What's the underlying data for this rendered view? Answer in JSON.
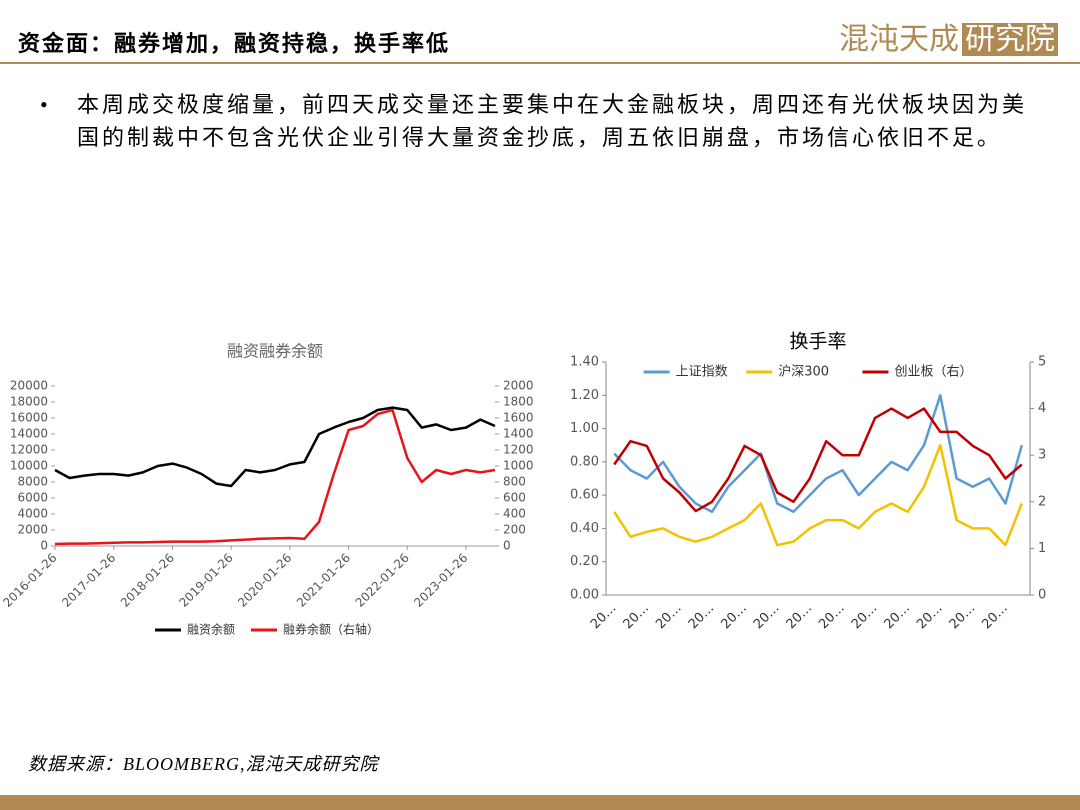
{
  "header": {
    "title": "资金面：融券增加，融资持稳，换手率低",
    "logo_main": "混沌天成",
    "logo_box": "研究院"
  },
  "bullet": "本周成交极度缩量，前四天成交量还主要集中在大金融板块，周四还有光伏板块因为美国的制裁中不包含光伏企业引得大量资金抄底，周五依旧崩盘，市场信心依旧不足。",
  "source": "数据来源：BLOOMBERG,混沌天成研究院",
  "chart_data": [
    {
      "type": "line",
      "title": "融资融券余额",
      "x": [
        "2016-01-26",
        "2016-04-26",
        "2016-07-26",
        "2016-10-26",
        "2017-01-26",
        "2017-04-26",
        "2017-07-26",
        "2017-10-26",
        "2018-01-26",
        "2018-04-26",
        "2018-07-26",
        "2018-10-26",
        "2019-01-26",
        "2019-04-26",
        "2019-07-26",
        "2019-10-26",
        "2020-01-26",
        "2020-04-26",
        "2020-07-26",
        "2020-10-26",
        "2021-01-26",
        "2021-04-26",
        "2021-07-26",
        "2021-10-26",
        "2022-01-26",
        "2022-04-26",
        "2022-07-26",
        "2022-10-26",
        "2023-01-26",
        "2023-04-26",
        "2023-07-26"
      ],
      "xticks": [
        "2016-01-26",
        "2017-01-26",
        "2018-01-26",
        "2019-01-26",
        "2020-01-26",
        "2021-01-26",
        "2022-01-26",
        "2023-01-26"
      ],
      "ylim": [
        0,
        20000
      ],
      "yticks": [
        0,
        2000,
        4000,
        6000,
        8000,
        10000,
        12000,
        14000,
        16000,
        18000,
        20000
      ],
      "y2lim": [
        0,
        2000
      ],
      "y2ticks": [
        0,
        200,
        400,
        600,
        800,
        1000,
        1200,
        1400,
        1600,
        1800,
        2000
      ],
      "legend": "bottom",
      "series": [
        {
          "name": "融资余额",
          "color": "#000000",
          "values": [
            9500,
            8500,
            8800,
            9000,
            9000,
            8800,
            9200,
            10000,
            10300,
            9800,
            9000,
            7800,
            7500,
            9500,
            9200,
            9500,
            10200,
            10500,
            14000,
            14800,
            15500,
            16000,
            17000,
            17300,
            17000,
            14800,
            15200,
            14500,
            14800,
            15800,
            15000
          ]
        },
        {
          "name": "融券余额（右轴）",
          "color": "#e8141b",
          "axis": "y2",
          "values": [
            25,
            30,
            30,
            35,
            40,
            45,
            45,
            50,
            55,
            55,
            55,
            60,
            70,
            80,
            90,
            95,
            100,
            90,
            300,
            900,
            1450,
            1500,
            1650,
            1700,
            1100,
            800,
            950,
            900,
            950,
            920,
            950
          ]
        }
      ]
    },
    {
      "type": "line",
      "title": "换手率",
      "categories": [
        "20…",
        null,
        "20…",
        null,
        "20…",
        null,
        "20…",
        null,
        "20…",
        null,
        "20…",
        null,
        "20…",
        null,
        "20…",
        null,
        "20…",
        null,
        "20…",
        null,
        "20…",
        null,
        "20…",
        null,
        "20…",
        null
      ],
      "ylim": [
        0,
        1.4
      ],
      "yticks": [
        {
          "value": 0,
          "label": "0.00"
        },
        {
          "value": 0.2,
          "label": "0.20"
        },
        {
          "value": 0.4,
          "label": "0.40"
        },
        {
          "value": 0.6,
          "label": "0.60"
        },
        {
          "value": 0.8,
          "label": "0.80"
        },
        {
          "value": 1,
          "label": "1.00"
        },
        {
          "value": 1.2,
          "label": "1.20"
        },
        {
          "value": 1.4,
          "label": "1.40"
        }
      ],
      "y2lim": [
        0,
        5
      ],
      "y2ticks": [
        0,
        1,
        2,
        3,
        4,
        5
      ],
      "legend": "top",
      "series": [
        {
          "name": "上证指数",
          "color": "#5b9bd5",
          "values": [
            0.85,
            0.75,
            0.7,
            0.8,
            0.65,
            0.55,
            0.5,
            0.65,
            0.75,
            0.85,
            0.55,
            0.5,
            0.6,
            0.7,
            0.75,
            0.6,
            0.7,
            0.8,
            0.75,
            0.9,
            1.2,
            0.7,
            0.65,
            0.7,
            0.55,
            0.9
          ]
        },
        {
          "name": "沪深300",
          "color": "#f2c200",
          "values": [
            0.5,
            0.35,
            0.38,
            0.4,
            0.35,
            0.32,
            0.35,
            0.4,
            0.45,
            0.55,
            0.3,
            0.32,
            0.4,
            0.45,
            0.45,
            0.4,
            0.5,
            0.55,
            0.5,
            0.65,
            0.9,
            0.45,
            0.4,
            0.4,
            0.3,
            0.55
          ]
        },
        {
          "name": "创业板（右）",
          "color": "#c00000",
          "axis": "y2",
          "values": [
            2.8,
            3.3,
            3.2,
            2.5,
            2.2,
            1.8,
            2.0,
            2.5,
            3.2,
            3.0,
            2.2,
            2.0,
            2.5,
            3.3,
            3.0,
            3.0,
            3.8,
            4.0,
            3.8,
            4.0,
            3.5,
            3.5,
            3.2,
            3.0,
            2.5,
            2.8
          ]
        }
      ]
    }
  ]
}
